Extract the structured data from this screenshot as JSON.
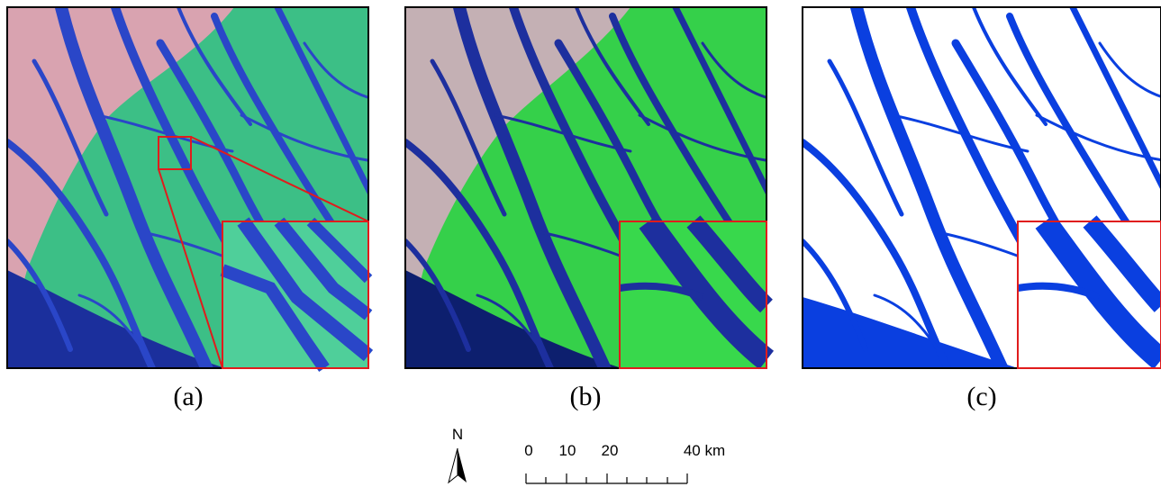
{
  "panels": [
    {
      "label": "(a)"
    },
    {
      "label": "(b)"
    },
    {
      "label": "(c)"
    }
  ],
  "north_arrow": {
    "label": "N"
  },
  "scale_bar": {
    "labels": [
      "0",
      "10",
      "20",
      "40 km"
    ]
  }
}
